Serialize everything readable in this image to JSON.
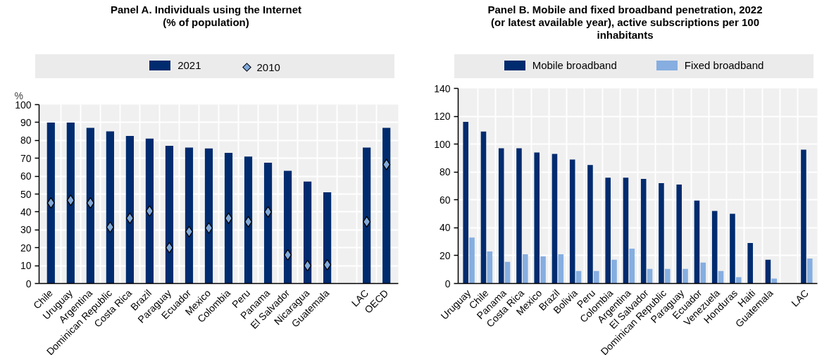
{
  "chart_data": [
    {
      "type": "bar",
      "title": "Panel A. Individuals using the Internet (% of population)",
      "ylabel": "%",
      "categories": [
        "Chile",
        "Uruguay",
        "Argentina",
        "Dominican Republic",
        "Costa Rica",
        "Brazil",
        "Paraguay",
        "Ecuador",
        "Mexico",
        "Colombia",
        "Peru",
        "Panama",
        "El Salvador",
        "Nicaragua",
        "Guatemala",
        null,
        "LAC",
        "OECD"
      ],
      "series": [
        {
          "name": "2021",
          "color": "#002b6e",
          "values": [
            90,
            90,
            87,
            85,
            82.5,
            81,
            77,
            76,
            75.5,
            73,
            71,
            67.5,
            63,
            57,
            51,
            null,
            76,
            87
          ]
        },
        {
          "name": "2010",
          "type": "scatter",
          "marker": "diamond",
          "color": "#7fa8d9",
          "values": [
            45,
            46.5,
            45,
            31.5,
            36.5,
            40.5,
            20,
            29,
            31,
            36.5,
            34.5,
            40,
            16,
            10,
            10.5,
            null,
            34.5,
            66.5
          ]
        }
      ],
      "ylim": [
        0,
        100
      ],
      "yticks": [
        0,
        10,
        20,
        30,
        40,
        50,
        60,
        70,
        80,
        90,
        100
      ],
      "grid": true,
      "legend": "top"
    },
    {
      "type": "bar",
      "title": "Panel B. Mobile and fixed broadband penetration, 2022 (or latest available year), active subscriptions per 100 inhabitants",
      "categories": [
        "Uruguay",
        "Chile",
        "Panama",
        "Costa Rica",
        "Mexico",
        "Brazil",
        "Bolivia",
        "Peru",
        "Colombia",
        "Argentina",
        "El Salvador",
        "Dominican Republic",
        "Paraguay",
        "Ecuador",
        "Venezuela",
        "Honduras",
        "Haiti",
        "Guatemala",
        null,
        "LAC"
      ],
      "series": [
        {
          "name": "Mobile broadband",
          "color": "#002b6e",
          "values": [
            116,
            109,
            97,
            97,
            94,
            93,
            89,
            85,
            76,
            76,
            75,
            72,
            71,
            59.5,
            52,
            50,
            29,
            17,
            null,
            96
          ]
        },
        {
          "name": "Fixed broadband",
          "color": "#86aee0",
          "values": [
            33,
            23,
            15.5,
            21,
            19.5,
            21,
            9,
            9,
            17,
            25,
            10.5,
            10.5,
            10.5,
            15,
            9,
            4.5,
            null,
            3.5,
            null,
            18
          ]
        }
      ],
      "ylim": [
        0,
        140
      ],
      "yticks": [
        0,
        20,
        40,
        60,
        80,
        100,
        120,
        140
      ],
      "grid": true,
      "legend": "top"
    }
  ]
}
